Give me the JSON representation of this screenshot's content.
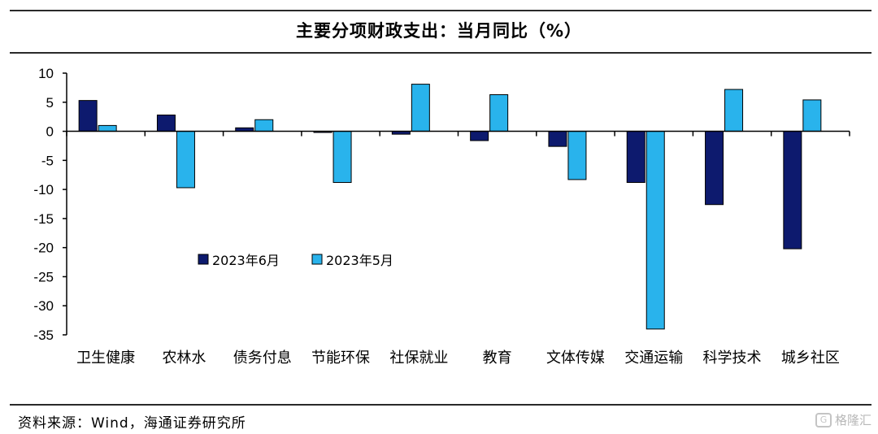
{
  "title": "主要分项财政支出：当月同比（%）",
  "source": "资料来源：Wind，海通证券研究所",
  "watermark": "格隆汇",
  "colors": {
    "series_2023_06": "#0d1a6e",
    "series_2023_05": "#29b3ec",
    "axis": "#000000"
  },
  "chart_data": {
    "type": "bar",
    "title": "主要分项财政支出：当月同比（%）",
    "xlabel": "",
    "ylabel": "",
    "ylim": [
      -35,
      10
    ],
    "yticks": [
      10,
      5,
      0,
      -5,
      -10,
      -15,
      -20,
      -25,
      -30,
      -35
    ],
    "grid": false,
    "legend_position": "center-left",
    "categories": [
      "卫生健康",
      "农林水",
      "债务付息",
      "节能环保",
      "社保就业",
      "教育",
      "文体传媒",
      "交通运输",
      "科学技术",
      "城乡社区"
    ],
    "series": [
      {
        "name": "2023年6月",
        "values": [
          5.3,
          2.8,
          0.6,
          -0.2,
          -0.5,
          -1.6,
          -2.6,
          -8.8,
          -12.6,
          -20.2
        ]
      },
      {
        "name": "2023年5月",
        "values": [
          1.0,
          -9.7,
          2.0,
          -8.8,
          8.1,
          6.3,
          -8.3,
          -34.0,
          7.2,
          5.4
        ]
      }
    ]
  }
}
